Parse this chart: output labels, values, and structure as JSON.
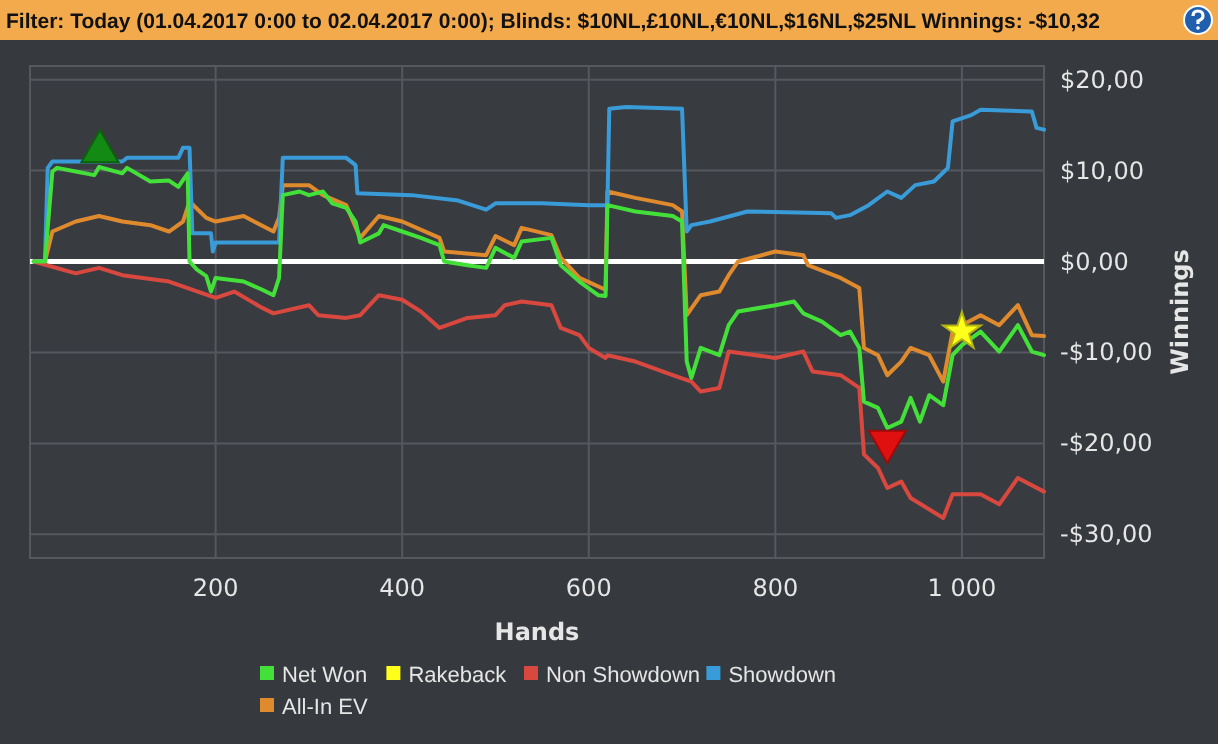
{
  "chart_data": {
    "type": "line",
    "title": "Filter: Today (01.04.2017 0:00 to 02.04.2017 0:00); Blinds: $10NL,£10NL,€10NL,$16NL,$25NL Winnings: -$10,32",
    "xlabel": "Hands",
    "ylabel": "Winnings",
    "xlim": [
      1,
      1088
    ],
    "ylim": [
      -32.6,
      21.5
    ],
    "xticks": [
      200,
      400,
      600,
      800,
      {
        "value": 1000,
        "label": "1 000"
      }
    ],
    "yticks": [
      {
        "value": 20,
        "label": "$20,00"
      },
      {
        "value": 10,
        "label": "$10,00"
      },
      {
        "value": 0,
        "label": "$0,00"
      },
      {
        "value": -10,
        "label": "-$10,00"
      },
      {
        "value": -20,
        "label": "-$20,00"
      },
      {
        "value": -30,
        "label": "-$30,00"
      }
    ],
    "grid": true,
    "legend": "bottom",
    "line_style": "solid",
    "ref_lines": [
      {
        "axis": "y",
        "value": 0,
        "color": "#ffffff"
      }
    ],
    "series": [
      {
        "name": "Net Won",
        "color": "#44e03a",
        "x": [
          5,
          17,
          25,
          30,
          50,
          70,
          75,
          100,
          105,
          130,
          150,
          160,
          170,
          172,
          180,
          190,
          195,
          200,
          230,
          250,
          262,
          268,
          272,
          290,
          300,
          315,
          325,
          340,
          350,
          355,
          375,
          380,
          400,
          420,
          440,
          445,
          470,
          490,
          500,
          520,
          528,
          560,
          570,
          590,
          610,
          618,
          620,
          650,
          690,
          700,
          705,
          710,
          720,
          740,
          750,
          760,
          800,
          820,
          830,
          850,
          870,
          880,
          890,
          895,
          910,
          920,
          935,
          945,
          955,
          965,
          980,
          990,
          1000,
          1020,
          1040,
          1060,
          1075,
          1088
        ],
        "values": [
          0,
          0,
          9.9,
          10.3,
          9.9,
          9.5,
          10.4,
          9.7,
          10.3,
          8.8,
          8.9,
          8.2,
          9.7,
          0,
          -0.9,
          -1.6,
          -3.3,
          -1.8,
          -2.2,
          -3.1,
          -3.7,
          -1.8,
          7.3,
          7.7,
          7.3,
          7.7,
          6.4,
          5.9,
          4.4,
          2.1,
          3.1,
          4.0,
          3.3,
          2.6,
          1.8,
          0,
          -0.4,
          -0.7,
          1.5,
          0.4,
          2.2,
          2.6,
          -0.4,
          -2.2,
          -3.7,
          -3.8,
          6.2,
          5.5,
          5.0,
          4.4,
          -11.0,
          -12.8,
          -9.5,
          -10.3,
          -7.0,
          -5.5,
          -4.8,
          -4.4,
          -5.7,
          -6.6,
          -8.1,
          -7.7,
          -9.5,
          -15.4,
          -16.1,
          -18.3,
          -17.6,
          -15.0,
          -17.6,
          -14.7,
          -15.8,
          -10.3,
          -9.2,
          -7.7,
          -9.9,
          -7.0,
          -9.9,
          -10.3
        ]
      },
      {
        "name": "Rakeback",
        "type": "scatter",
        "marker": "star",
        "color": "#ffff1a",
        "x": [
          1000
        ],
        "values": [
          -7.7
        ]
      },
      {
        "name": "Non Showdown",
        "color": "#d9483f",
        "x": [
          5,
          50,
          75,
          100,
          150,
          200,
          220,
          250,
          262,
          300,
          310,
          340,
          355,
          375,
          400,
          420,
          440,
          470,
          500,
          510,
          528,
          560,
          570,
          590,
          600,
          618,
          620,
          650,
          690,
          710,
          720,
          740,
          750,
          800,
          830,
          840,
          870,
          890,
          895,
          910,
          920,
          935,
          945,
          980,
          990,
          1020,
          1040,
          1060,
          1088
        ],
        "values": [
          0,
          -1.3,
          -0.7,
          -1.5,
          -2.2,
          -4.0,
          -3.3,
          -5.1,
          -5.7,
          -4.8,
          -5.9,
          -6.2,
          -5.9,
          -3.7,
          -4.2,
          -5.5,
          -7.3,
          -6.2,
          -5.9,
          -4.8,
          -4.4,
          -4.8,
          -7.3,
          -8.1,
          -9.5,
          -10.6,
          -10.3,
          -11.0,
          -12.5,
          -13.2,
          -14.3,
          -13.9,
          -9.9,
          -10.6,
          -9.9,
          -12.1,
          -12.5,
          -13.9,
          -21.2,
          -22.7,
          -24.9,
          -24.2,
          -26.0,
          -28.2,
          -25.6,
          -25.6,
          -26.7,
          -23.8,
          -25.3
        ]
      },
      {
        "name": "Showdown",
        "color": "#3a9bd9",
        "x": [
          5,
          17,
          20,
          25,
          100,
          105,
          160,
          165,
          172,
          175,
          195,
          197,
          200,
          268,
          272,
          340,
          350,
          352,
          410,
          460,
          490,
          500,
          550,
          600,
          620,
          622,
          640,
          700,
          705,
          710,
          730,
          770,
          860,
          865,
          880,
          900,
          920,
          935,
          950,
          970,
          985,
          990,
          1010,
          1020,
          1075,
          1080,
          1088
        ],
        "values": [
          0,
          0,
          10.3,
          11.0,
          11.0,
          11.4,
          11.4,
          12.5,
          12.5,
          3.1,
          3.1,
          1.1,
          2.1,
          2.1,
          11.4,
          11.4,
          10.6,
          7.5,
          7.3,
          6.7,
          5.7,
          6.4,
          6.4,
          6.2,
          6.2,
          16.8,
          17.0,
          16.8,
          3.3,
          4.0,
          4.4,
          5.5,
          5.3,
          4.8,
          5.1,
          6.2,
          7.7,
          7.0,
          8.4,
          8.8,
          10.3,
          15.4,
          16.1,
          16.7,
          16.5,
          14.7,
          14.5
        ]
      },
      {
        "name": "All-In EV",
        "color": "#e08a2e",
        "x": [
          5,
          17,
          25,
          50,
          75,
          100,
          130,
          150,
          165,
          172,
          190,
          200,
          230,
          262,
          268,
          272,
          300,
          315,
          340,
          355,
          375,
          400,
          440,
          445,
          490,
          500,
          520,
          528,
          560,
          570,
          590,
          618,
          620,
          650,
          690,
          700,
          705,
          720,
          740,
          750,
          760,
          800,
          830,
          835,
          870,
          890,
          895,
          910,
          920,
          935,
          945,
          965,
          980,
          990,
          1000,
          1020,
          1040,
          1060,
          1075,
          1088
        ],
        "values": [
          0,
          0,
          3.3,
          4.4,
          5.0,
          4.4,
          4.0,
          3.3,
          4.4,
          6.6,
          4.8,
          4.4,
          5.0,
          3.3,
          4.8,
          8.4,
          8.4,
          7.3,
          6.2,
          2.6,
          5.0,
          4.4,
          2.6,
          1.1,
          0.7,
          2.8,
          1.8,
          3.7,
          2.9,
          0.4,
          -1.8,
          -3.1,
          7.7,
          7.0,
          6.2,
          5.5,
          -5.9,
          -3.7,
          -3.3,
          -1.5,
          0,
          1.1,
          0.7,
          -0.4,
          -1.8,
          -2.9,
          -9.5,
          -10.3,
          -12.5,
          -11.0,
          -9.5,
          -10.3,
          -13.2,
          -7.7,
          -7.0,
          -5.9,
          -7.0,
          -4.8,
          -8.1,
          -8.2
        ]
      },
      {
        "type": "scatter",
        "marker": "triangle",
        "color": "#138a13",
        "x": [
          76
        ],
        "values": [
          12.1
        ]
      },
      {
        "type": "scatter",
        "marker": "triangle-down",
        "color": "#e01010",
        "x": [
          920
        ],
        "values": [
          -19.8
        ]
      }
    ]
  }
}
